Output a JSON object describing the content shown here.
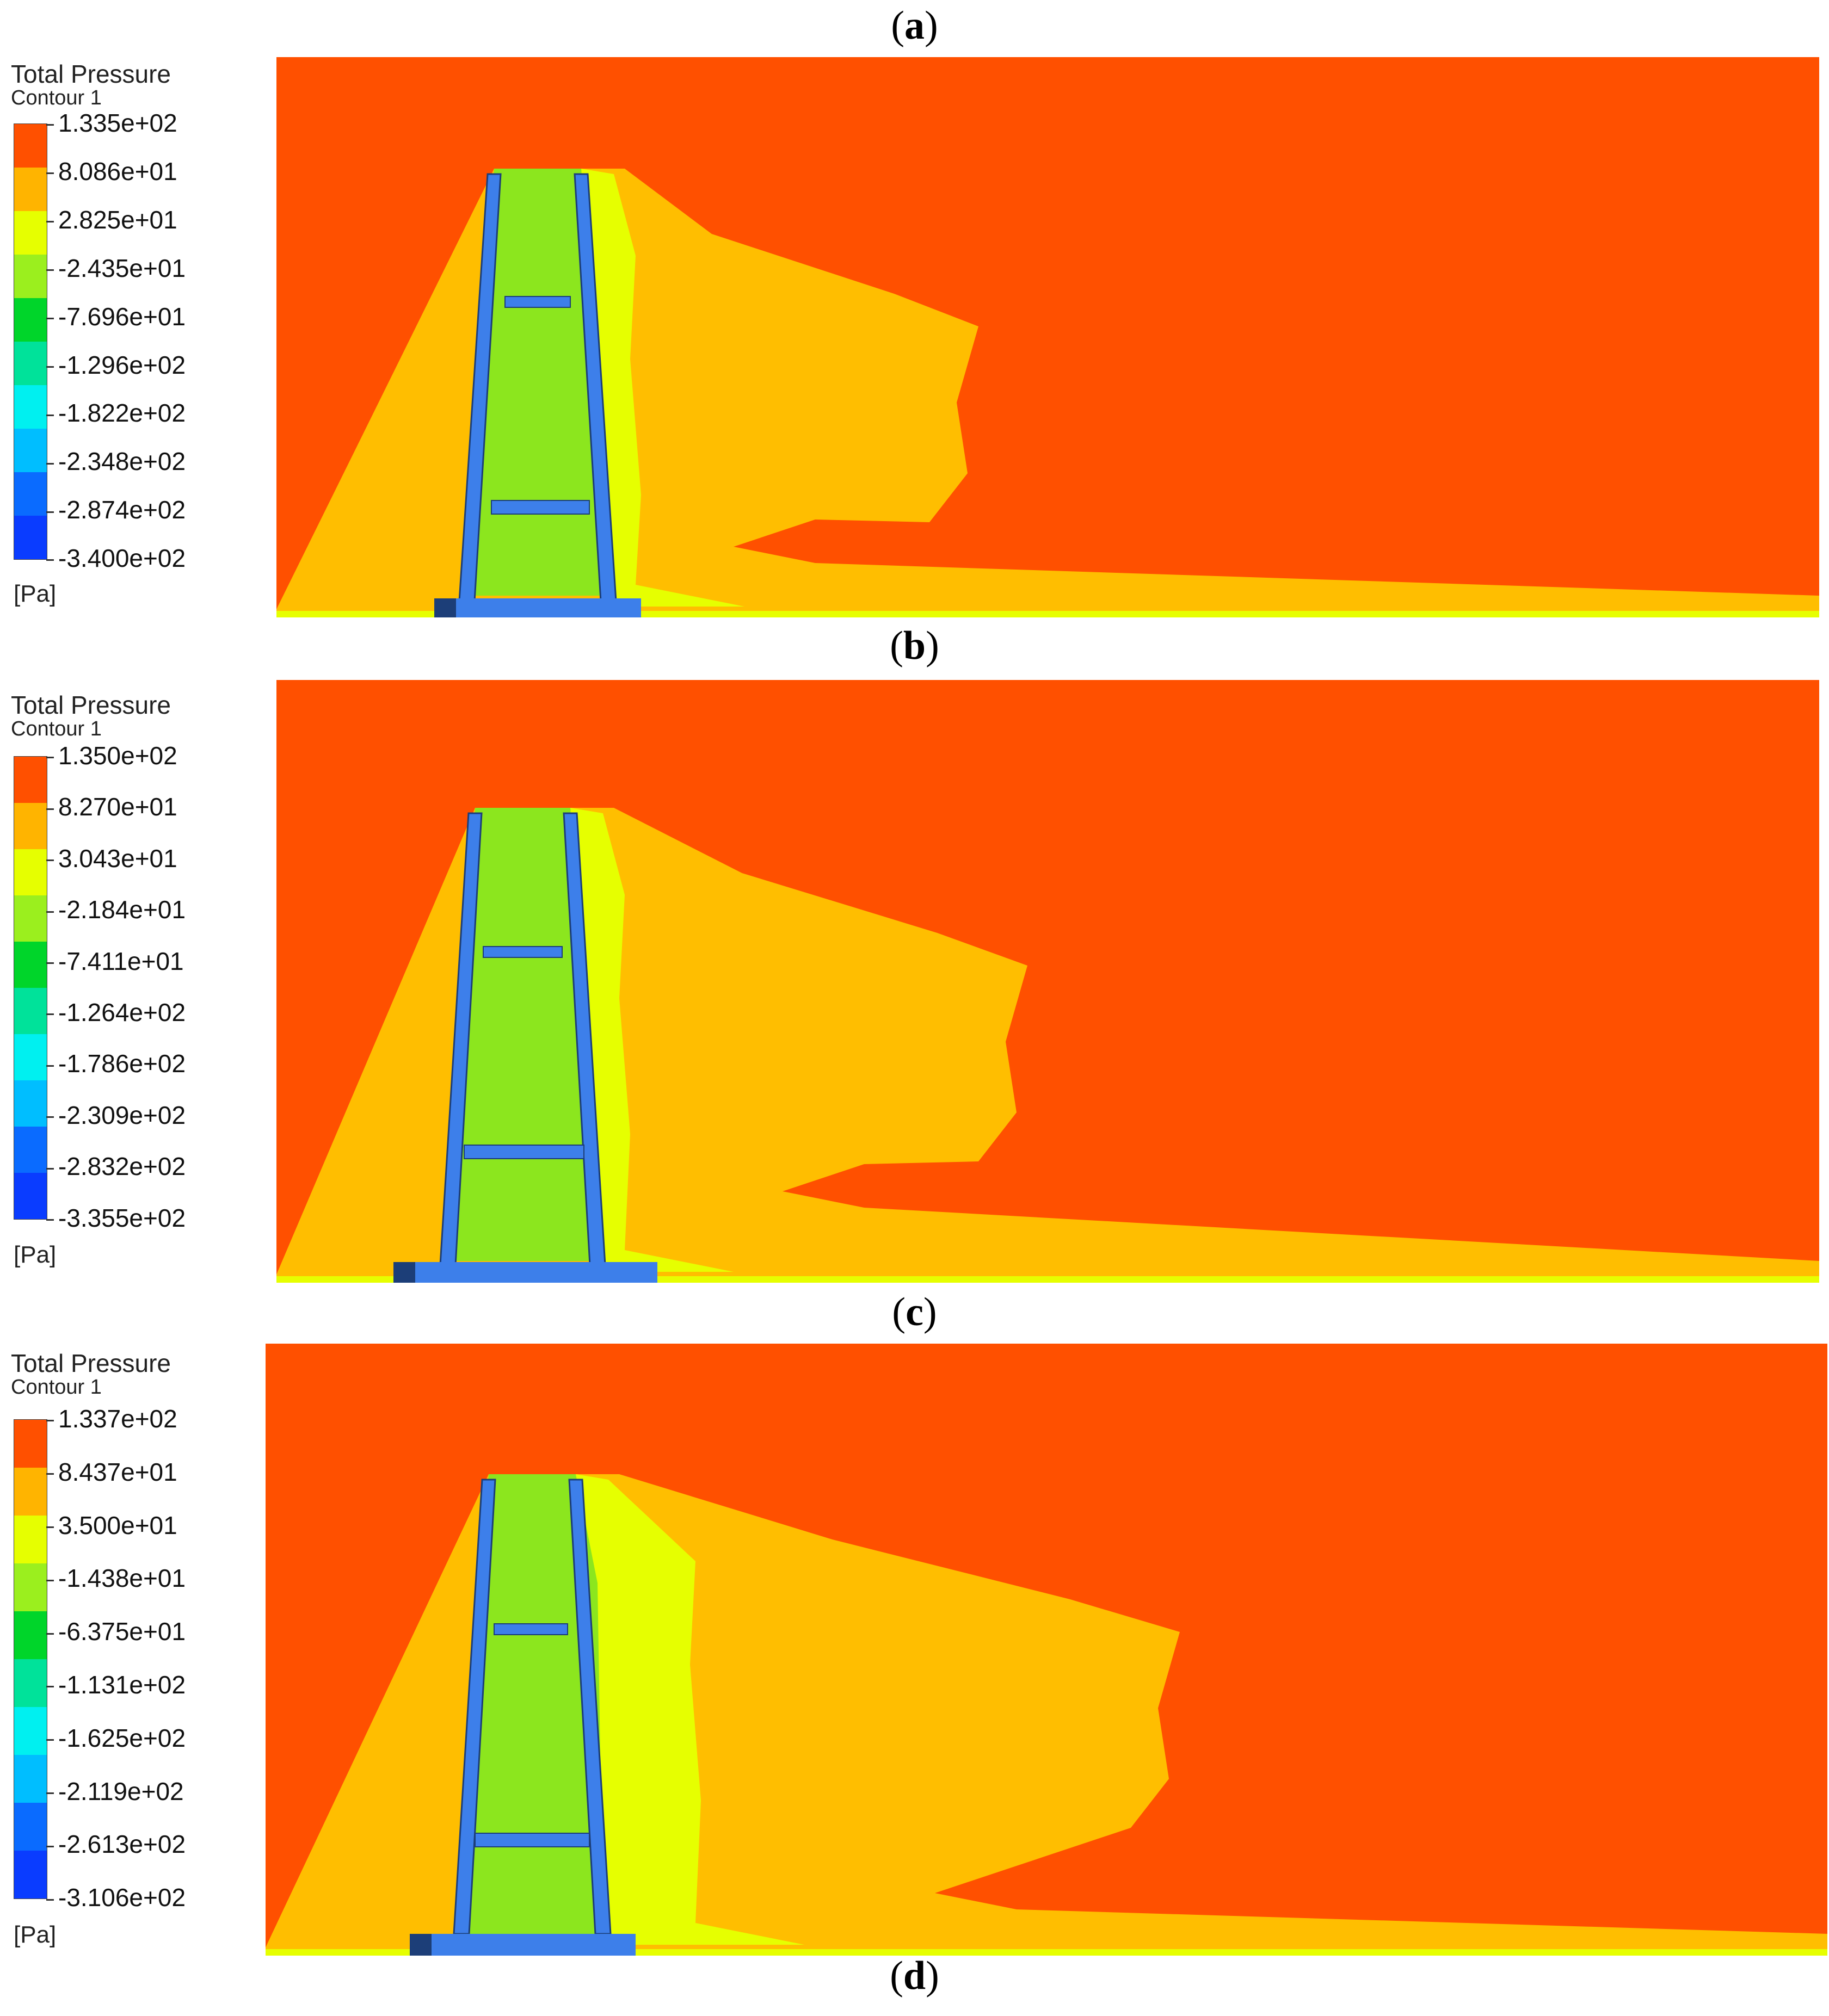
{
  "panel_labels": [
    "a",
    "b",
    "c",
    "d"
  ],
  "colorbar_colors": [
    "#ff5000",
    "#ffb400",
    "#e6ff00",
    "#9bef1e",
    "#00d52a",
    "#00e29a",
    "#00f0f0",
    "#00beff",
    "#0a6bff",
    "#0a3cff"
  ],
  "contour_colors": {
    "freestream": "#ff5000",
    "wake_outer": "#ffbe00",
    "wake_mid": "#e6ff00",
    "wake_inner": "#8ce61e",
    "pylon": "#3d7fea",
    "pylon_dark": "#1c3e78",
    "base": "#3d7fea"
  },
  "panels": [
    {
      "title": "Total Pressure",
      "subtitle": "Contour 1",
      "unit": "[Pa]",
      "ticks": [
        "1.335e+02",
        "8.086e+01",
        "2.825e+01",
        "-2.435e+01",
        "-7.696e+01",
        "-1.296e+02",
        "-1.822e+02",
        "-2.348e+02",
        "-2.874e+02",
        "-3.400e+02"
      ]
    },
    {
      "title": "Total Pressure",
      "subtitle": "Contour 1",
      "unit": "[Pa]",
      "ticks": [
        "1.350e+02",
        "8.270e+01",
        "3.043e+01",
        "-2.184e+01",
        "-7.411e+01",
        "-1.264e+02",
        "-1.786e+02",
        "-2.309e+02",
        "-2.832e+02",
        "-3.355e+02"
      ]
    },
    {
      "title": "Total Pressure",
      "subtitle": "Contour 1",
      "unit": "[Pa]",
      "ticks": [
        "1.337e+02",
        "8.437e+01",
        "3.500e+01",
        "-1.438e+01",
        "-6.375e+01",
        "-1.131e+02",
        "-1.625e+02",
        "-2.119e+02",
        "-2.613e+02",
        "-3.106e+02"
      ]
    }
  ]
}
